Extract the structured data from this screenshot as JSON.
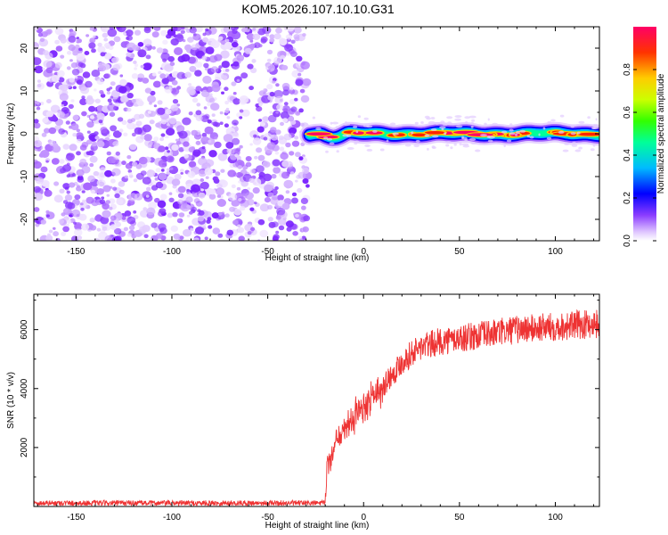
{
  "title": "KOM5.2026.107.10.10.G31",
  "chart_data": [
    {
      "type": "heatmap",
      "name": "spectrogram",
      "xlabel": "Height of straight line (km)",
      "ylabel": "Frequency (Hz)",
      "xlim": [
        -172,
        123
      ],
      "ylim": [
        -25,
        25
      ],
      "xticks": [
        -150,
        -100,
        -50,
        0,
        50,
        100
      ],
      "yticks": [
        -20,
        -10,
        0,
        10,
        20
      ],
      "noise_region_x": [
        -172,
        -29
      ],
      "signal_region_x": [
        -29,
        123
      ],
      "signal_frequency_hz": 0,
      "signal_halfwidth_hz": 2,
      "colorbar": {
        "label": "Normalized spectral amplitude",
        "range": [
          0,
          1
        ],
        "ticks": [
          0.0,
          0.2,
          0.4,
          0.6,
          0.8
        ],
        "colors": [
          "#ffffff",
          "#cc88ff",
          "#6600ff",
          "#0000ff",
          "#00ccff",
          "#00ff66",
          "#ccff00",
          "#ffcc00",
          "#ff3300",
          "#ff0066"
        ]
      }
    },
    {
      "type": "line",
      "name": "snr",
      "xlabel": "Height of straight line (km)",
      "ylabel": "SNR (10 * v/v)",
      "xlim": [
        -172,
        123
      ],
      "ylim": [
        0,
        7200
      ],
      "xticks": [
        -150,
        -100,
        -50,
        0,
        50,
        100
      ],
      "yticks": [
        2000,
        4000,
        6000
      ],
      "color": "#ee3333",
      "series": [
        {
          "name": "SNR",
          "x": [
            -172,
            -150,
            -100,
            -50,
            -20,
            -19,
            -15,
            -10,
            -5,
            0,
            5,
            10,
            15,
            20,
            25,
            30,
            40,
            50,
            60,
            70,
            80,
            90,
            100,
            110,
            120,
            123
          ],
          "y": [
            80,
            80,
            80,
            80,
            80,
            1500,
            2000,
            2600,
            3000,
            3400,
            3700,
            4100,
            4500,
            4900,
            5200,
            5400,
            5600,
            5700,
            5800,
            5900,
            6000,
            6050,
            6100,
            6150,
            6200,
            6200
          ]
        }
      ]
    }
  ]
}
